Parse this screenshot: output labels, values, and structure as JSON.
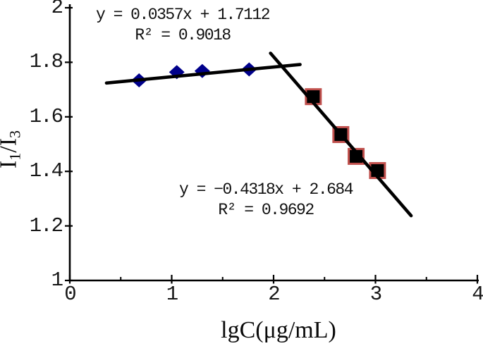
{
  "chart_data": {
    "type": "scatter",
    "title": "",
    "grid": false,
    "legend": "none",
    "axis_color": "#000000",
    "trendline_color": "#000000",
    "x_axis": {
      "label": "lgC(μg/mL)",
      "range": [
        0,
        4
      ],
      "major_ticks": [
        {
          "value": 0,
          "label": "0"
        },
        {
          "value": 1,
          "label": "1"
        },
        {
          "value": 2,
          "label": "2"
        },
        {
          "value": 3,
          "label": "3"
        },
        {
          "value": 4,
          "label": "4"
        }
      ],
      "minor_ticks": [
        0.5,
        1.5,
        2.5,
        3.5
      ]
    },
    "y_axis": {
      "label": "I1/I3",
      "label_parts": [
        {
          "text": "I",
          "sub": false
        },
        {
          "text": "1",
          "sub": true
        },
        {
          "text": "/I",
          "sub": false
        },
        {
          "text": "3",
          "sub": true
        }
      ],
      "range": [
        1,
        2
      ],
      "major_ticks": [
        {
          "value": 2,
          "label": "2"
        },
        {
          "value": 1.8,
          "label": "1.8"
        },
        {
          "value": 1.6,
          "label": "1.6"
        },
        {
          "value": 1.4,
          "label": "1.4"
        },
        {
          "value": 1.2,
          "label": "1.2"
        },
        {
          "value": 1,
          "label": "1"
        }
      ]
    },
    "series": [
      {
        "name": "rising-segment",
        "marker": "diamond",
        "marker_color": "#00008B",
        "points": [
          [
            0.68,
            1.734
          ],
          [
            1.05,
            1.764
          ],
          [
            1.3,
            1.768
          ],
          [
            1.76,
            1.774
          ]
        ],
        "trendline": {
          "slope": 0.0357,
          "intercept": 1.7112,
          "r_squared": 0.9018,
          "x_start": 0.36,
          "x_end": 2.26
        }
      },
      {
        "name": "falling-segment",
        "marker": "square",
        "marker_color": "#000000",
        "marker_border": "#C0504D",
        "points": [
          [
            2.39,
            1.674
          ],
          [
            2.66,
            1.535
          ],
          [
            2.81,
            1.455
          ],
          [
            3.02,
            1.403
          ]
        ],
        "trendline": {
          "slope": -0.4318,
          "intercept": 2.684,
          "r_squared": 0.9692,
          "x_start": 1.97,
          "x_end": 3.35
        }
      }
    ],
    "annotations": [
      {
        "name": "fit1-equation",
        "lines": [
          "y = 0.0357x + 1.7112",
          "R² = 0.9018"
        ]
      },
      {
        "name": "fit2-equation",
        "lines": [
          "y = −0.4318x + 2.684",
          "R² = 0.9692"
        ]
      }
    ]
  }
}
